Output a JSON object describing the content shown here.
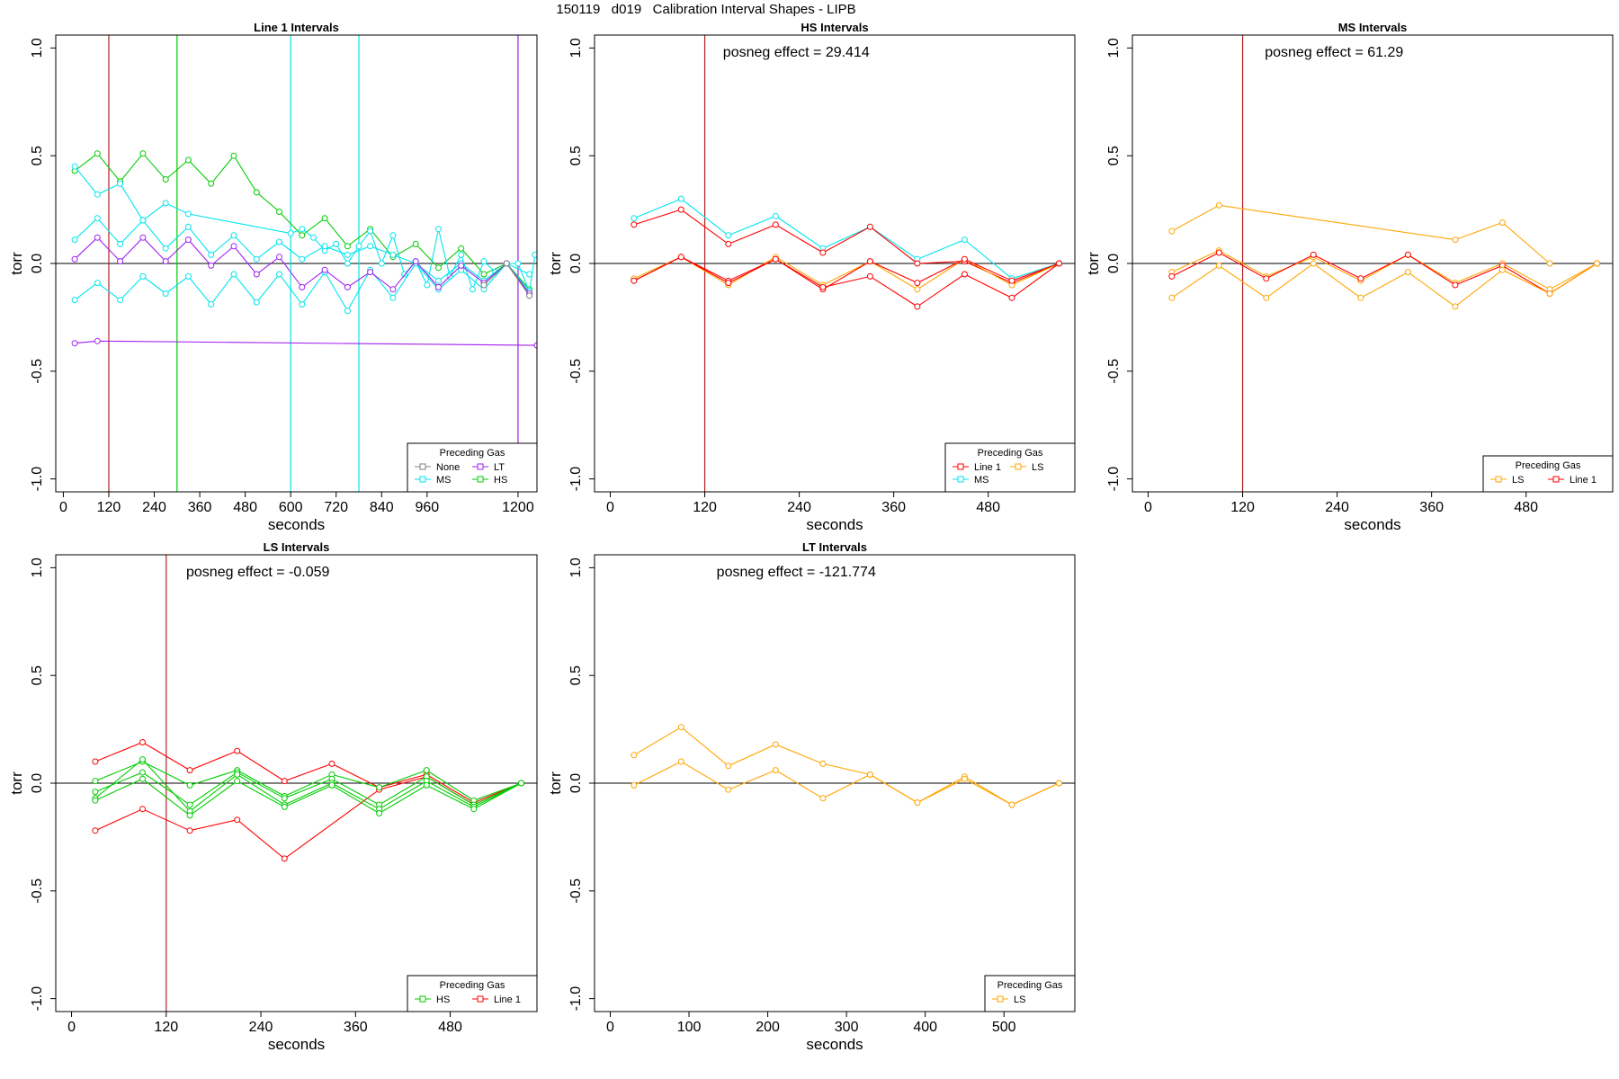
{
  "page": {
    "title": "150119   d019   Calibration Interval Shapes - LIPB"
  },
  "colors": {
    "none": "#808080",
    "ms": "#00E5EE",
    "lt": "#A020F0",
    "hs": "#00CD00",
    "line1": "#FF0000",
    "ls": "#FFA500",
    "vline_red": "#B22222"
  },
  "chart_data": [
    {
      "type": "line",
      "title": "Line 1 Intervals",
      "xlabel": "seconds",
      "ylabel": "torr",
      "annotation": "",
      "xlim": [
        -20,
        1250
      ],
      "ylim": [
        -1.06,
        1.06
      ],
      "xticks": [
        0,
        120,
        240,
        360,
        480,
        600,
        720,
        840,
        960,
        1200
      ],
      "yticks": [
        1.0,
        0.5,
        0.0,
        -0.5,
        -1.0
      ],
      "ytick_labels": [
        "1.0",
        "0.5",
        "0.0",
        "-0.5",
        "-1.0"
      ],
      "hline": 0,
      "vlines": [
        {
          "x": 120,
          "color": "#B22222"
        },
        {
          "x": 300,
          "color": "#00CD00"
        },
        {
          "x": 600,
          "color": "#00E5EE"
        },
        {
          "x": 780,
          "color": "#00E5EE"
        },
        {
          "x": 1200,
          "color": "#A020F0"
        }
      ],
      "legend": {
        "title": "Preceding Gas",
        "position": "bottom-right",
        "columns": 2,
        "entries": [
          {
            "label": "None",
            "color": "#808080"
          },
          {
            "label": "LT",
            "color": "#A020F0"
          },
          {
            "label": "MS",
            "color": "#00E5EE"
          },
          {
            "label": "HS",
            "color": "#00CD00"
          }
        ]
      },
      "series": [
        {
          "color": "#00CD00",
          "x": [
            30,
            90,
            150,
            210,
            270,
            330,
            390,
            450,
            510,
            570,
            630,
            690,
            750,
            810,
            870,
            930,
            990,
            1050,
            1110,
            1170,
            1230
          ],
          "y": [
            0.43,
            0.51,
            0.38,
            0.51,
            0.39,
            0.48,
            0.37,
            0.5,
            0.33,
            0.24,
            0.13,
            0.21,
            0.08,
            0.16,
            0.03,
            0.09,
            -0.02,
            0.07,
            -0.05,
            0.0,
            -0.12
          ]
        },
        {
          "color": "#00E5EE",
          "x": [
            30,
            90,
            150,
            210,
            270,
            330,
            600,
            630,
            660,
            690,
            720,
            750,
            780,
            810,
            840,
            870,
            900,
            930,
            960,
            990,
            1020,
            1050,
            1080,
            1110,
            1140,
            1170,
            1200,
            1230,
            1245
          ],
          "y": [
            0.45,
            0.32,
            0.37,
            0.2,
            0.28,
            0.23,
            0.14,
            0.16,
            0.12,
            0.06,
            0.09,
            0.0,
            0.08,
            0.15,
            0.0,
            0.13,
            -0.05,
            0.01,
            -0.1,
            0.16,
            -0.06,
            0.04,
            -0.12,
            0.01,
            -0.04,
            0.0,
            0.0,
            -0.13,
            0.04
          ]
        },
        {
          "color": "#00E5EE",
          "x": [
            30,
            90,
            150,
            210,
            270,
            330,
            390,
            450,
            510,
            570,
            630,
            690,
            750,
            810,
            870,
            930,
            990,
            1050,
            1110,
            1170,
            1230
          ],
          "y": [
            0.11,
            0.21,
            0.09,
            0.2,
            0.07,
            0.17,
            0.04,
            0.13,
            0.02,
            0.1,
            0.02,
            0.08,
            0.04,
            0.08,
            0.04,
            0.0,
            -0.08,
            0.0,
            -0.08,
            0.0,
            -0.05
          ]
        },
        {
          "color": "#00E5EE",
          "x": [
            30,
            90,
            150,
            210,
            270,
            330,
            390,
            450,
            510,
            570,
            630,
            690,
            750,
            810,
            870,
            930,
            990,
            1050,
            1110,
            1170,
            1230
          ],
          "y": [
            -0.17,
            -0.09,
            -0.17,
            -0.06,
            -0.14,
            -0.06,
            -0.19,
            -0.05,
            -0.18,
            -0.05,
            -0.19,
            -0.04,
            -0.22,
            -0.03,
            -0.16,
            0.0,
            -0.12,
            -0.03,
            -0.12,
            0.0,
            -0.13
          ]
        },
        {
          "color": "#A020F0",
          "x": [
            30,
            90,
            150,
            210,
            270,
            330,
            390,
            450,
            510,
            570,
            630,
            690,
            750,
            810,
            870,
            930,
            990,
            1050,
            1110,
            1170,
            1230
          ],
          "y": [
            0.02,
            0.12,
            0.01,
            0.12,
            0.01,
            0.11,
            -0.01,
            0.08,
            -0.05,
            0.03,
            -0.11,
            -0.03,
            -0.11,
            -0.04,
            -0.12,
            0.01,
            -0.11,
            -0.01,
            -0.09,
            0.0,
            -0.14
          ]
        },
        {
          "color": "#A020F0",
          "x": [
            30,
            90,
            1250
          ],
          "y": [
            -0.37,
            -0.36,
            -0.38
          ]
        },
        {
          "color": "#808080",
          "x": [
            1110,
            1170,
            1230
          ],
          "y": [
            -0.1,
            0.0,
            -0.15
          ]
        }
      ]
    },
    {
      "type": "line",
      "title": "HS Intervals",
      "xlabel": "seconds",
      "ylabel": "torr",
      "annotation": "posneg effect = 29.414",
      "xlim": [
        -20,
        590
      ],
      "ylim": [
        -1.06,
        1.06
      ],
      "xticks": [
        0,
        120,
        240,
        360,
        480
      ],
      "yticks": [
        1.0,
        0.5,
        0.0,
        -0.5,
        -1.0
      ],
      "ytick_labels": [
        "1.0",
        "0.5",
        "0.0",
        "-0.5",
        "-1.0"
      ],
      "hline": 0,
      "vlines": [
        {
          "x": 120,
          "color": "#B22222"
        }
      ],
      "legend": {
        "title": "Preceding Gas",
        "position": "bottom-right",
        "columns": 2,
        "entries": [
          {
            "label": "Line 1",
            "color": "#FF0000"
          },
          {
            "label": "LS",
            "color": "#FFA500"
          },
          {
            "label": "MS",
            "color": "#00E5EE"
          }
        ]
      },
      "series": [
        {
          "color": "#00E5EE",
          "x": [
            30,
            90,
            150,
            210,
            270,
            330,
            390,
            450,
            510,
            570
          ],
          "y": [
            0.21,
            0.3,
            0.13,
            0.22,
            0.07,
            0.17,
            0.02,
            0.11,
            -0.07,
            0.0
          ]
        },
        {
          "color": "#FF0000",
          "x": [
            30,
            90,
            150,
            210,
            270,
            330,
            390,
            450,
            510,
            570
          ],
          "y": [
            0.18,
            0.25,
            0.09,
            0.18,
            0.05,
            0.17,
            0.0,
            0.01,
            -0.09,
            0.0
          ]
        },
        {
          "color": "#FFA500",
          "x": [
            30,
            90,
            150,
            210,
            270,
            330,
            390,
            450,
            510,
            570
          ],
          "y": [
            -0.07,
            0.03,
            -0.1,
            0.03,
            -0.1,
            0.01,
            -0.12,
            0.02,
            -0.1,
            0.0
          ]
        },
        {
          "color": "#FF0000",
          "x": [
            30,
            90,
            150,
            210,
            270,
            330,
            390,
            450,
            510,
            570
          ],
          "y": [
            -0.08,
            0.03,
            -0.08,
            0.02,
            -0.12,
            0.01,
            -0.09,
            0.02,
            -0.08,
            0.0
          ]
        },
        {
          "color": "#FF0000",
          "x": [
            30,
            90,
            150,
            210,
            270,
            330,
            390,
            450,
            510,
            570
          ],
          "y": [
            -0.08,
            0.03,
            -0.09,
            0.02,
            -0.11,
            -0.06,
            -0.2,
            -0.05,
            -0.16,
            0.0
          ]
        }
      ]
    },
    {
      "type": "line",
      "title": "MS Intervals",
      "xlabel": "seconds",
      "ylabel": "torr",
      "annotation": "posneg effect = 61.29",
      "xlim": [
        -20,
        590
      ],
      "ylim": [
        -1.06,
        1.06
      ],
      "xticks": [
        0,
        120,
        240,
        360,
        480
      ],
      "yticks": [
        1.0,
        0.5,
        0.0,
        -0.5,
        -1.0
      ],
      "ytick_labels": [
        "1.0",
        "0.5",
        "0.0",
        "-0.5",
        "-1.0"
      ],
      "hline": 0,
      "vlines": [
        {
          "x": 120,
          "color": "#B22222"
        }
      ],
      "legend": {
        "title": "Preceding Gas",
        "position": "bottom-right",
        "columns": 2,
        "entries": [
          {
            "label": "LS",
            "color": "#FFA500"
          },
          {
            "label": "Line 1",
            "color": "#FF0000"
          }
        ]
      },
      "series": [
        {
          "color": "#FFA500",
          "x": [
            30,
            90,
            390,
            450,
            510
          ],
          "y": [
            0.15,
            0.27,
            0.11,
            0.19,
            0.0
          ]
        },
        {
          "color": "#FFA500",
          "x": [
            30,
            90,
            150,
            210,
            270,
            330,
            390,
            450,
            510,
            570
          ],
          "y": [
            -0.04,
            0.06,
            -0.06,
            0.03,
            -0.08,
            0.04,
            -0.09,
            0.0,
            -0.12,
            0.0
          ]
        },
        {
          "color": "#FF0000",
          "x": [
            30,
            90,
            150,
            210,
            270,
            330,
            390,
            450,
            510,
            570
          ],
          "y": [
            -0.06,
            0.05,
            -0.07,
            0.04,
            -0.07,
            0.04,
            -0.1,
            -0.01,
            -0.14,
            0.0
          ]
        },
        {
          "color": "#FFA500",
          "x": [
            30,
            90,
            150,
            210,
            270,
            330,
            390,
            450,
            510,
            570
          ],
          "y": [
            -0.16,
            -0.01,
            -0.16,
            0.0,
            -0.16,
            -0.04,
            -0.2,
            -0.03,
            -0.14,
            0.0
          ]
        }
      ]
    },
    {
      "type": "line",
      "title": "LS Intervals",
      "xlabel": "seconds",
      "ylabel": "torr",
      "annotation": "posneg effect = -0.059",
      "xlim": [
        -20,
        590
      ],
      "ylim": [
        -1.06,
        1.06
      ],
      "xticks": [
        0,
        120,
        240,
        360,
        480
      ],
      "yticks": [
        1.0,
        0.5,
        0.0,
        -0.5,
        -1.0
      ],
      "ytick_labels": [
        "1.0",
        "0.5",
        "0.0",
        "-0.5",
        "-1.0"
      ],
      "hline": 0,
      "vlines": [
        {
          "x": 120,
          "color": "#B22222"
        }
      ],
      "legend": {
        "title": "Preceding Gas",
        "position": "bottom-right",
        "columns": 2,
        "entries": [
          {
            "label": "HS",
            "color": "#00CD00"
          },
          {
            "label": "Line 1",
            "color": "#FF0000"
          }
        ]
      },
      "series": [
        {
          "color": "#FF0000",
          "x": [
            30,
            90,
            150,
            210,
            270,
            330,
            390,
            450,
            510,
            570
          ],
          "y": [
            0.1,
            0.19,
            0.06,
            0.15,
            0.01,
            0.09,
            -0.02,
            0.04,
            -0.09,
            0.0
          ]
        },
        {
          "color": "#FF0000",
          "x": [
            30,
            90,
            150,
            210,
            270,
            390,
            450,
            510,
            570
          ],
          "y": [
            -0.22,
            -0.12,
            -0.22,
            -0.17,
            -0.35,
            -0.03,
            0.03,
            -0.1,
            0.0
          ]
        },
        {
          "color": "#00CD00",
          "x": [
            30,
            90,
            150,
            210,
            270,
            330,
            390,
            450,
            510,
            570
          ],
          "y": [
            0.01,
            0.1,
            -0.01,
            0.06,
            -0.06,
            0.04,
            -0.02,
            0.06,
            -0.08,
            0.0
          ]
        },
        {
          "color": "#00CD00",
          "x": [
            30,
            90,
            150,
            210,
            270,
            330,
            390,
            450,
            510,
            570
          ],
          "y": [
            -0.04,
            0.05,
            -0.1,
            0.05,
            -0.07,
            0.02,
            -0.1,
            0.03,
            -0.1,
            0.0
          ]
        },
        {
          "color": "#00CD00",
          "x": [
            30,
            90,
            150,
            210,
            270,
            330,
            390,
            450,
            510,
            570
          ],
          "y": [
            -0.07,
            0.11,
            -0.13,
            0.04,
            -0.1,
            0.0,
            -0.12,
            0.01,
            -0.11,
            0.0
          ]
        },
        {
          "color": "#00CD00",
          "x": [
            30,
            90,
            150,
            210,
            270,
            330,
            390,
            450,
            510,
            570
          ],
          "y": [
            -0.08,
            0.02,
            -0.15,
            0.01,
            -0.11,
            -0.01,
            -0.14,
            -0.01,
            -0.12,
            0.0
          ]
        }
      ]
    },
    {
      "type": "line",
      "title": "LT Intervals",
      "xlabel": "seconds",
      "ylabel": "torr",
      "annotation": "posneg effect = -121.774",
      "xlim": [
        -20,
        590
      ],
      "ylim": [
        -1.06,
        1.06
      ],
      "xticks": [
        0,
        100,
        200,
        300,
        400,
        500
      ],
      "yticks": [
        1.0,
        0.5,
        0.0,
        -0.5,
        -1.0
      ],
      "ytick_labels": [
        "1.0",
        "0.5",
        "0.0",
        "-0.5",
        "-1.0"
      ],
      "hline": 0,
      "vlines": [],
      "legend": {
        "title": "Preceding Gas",
        "position": "bottom-right",
        "columns": 1,
        "entries": [
          {
            "label": "LS",
            "color": "#FFA500"
          }
        ]
      },
      "series": [
        {
          "color": "#FFA500",
          "x": [
            30,
            90,
            150,
            210,
            270,
            330,
            390,
            450,
            510,
            570
          ],
          "y": [
            0.13,
            0.26,
            0.08,
            0.18,
            0.09,
            0.04,
            -0.09,
            0.03,
            -0.1,
            0.0
          ]
        },
        {
          "color": "#FFA500",
          "x": [
            30,
            90,
            150,
            210,
            270,
            330,
            390,
            450,
            510,
            570
          ],
          "y": [
            -0.01,
            0.1,
            -0.03,
            0.06,
            -0.07,
            0.04,
            -0.09,
            0.02,
            -0.1,
            0.0
          ]
        }
      ]
    }
  ]
}
